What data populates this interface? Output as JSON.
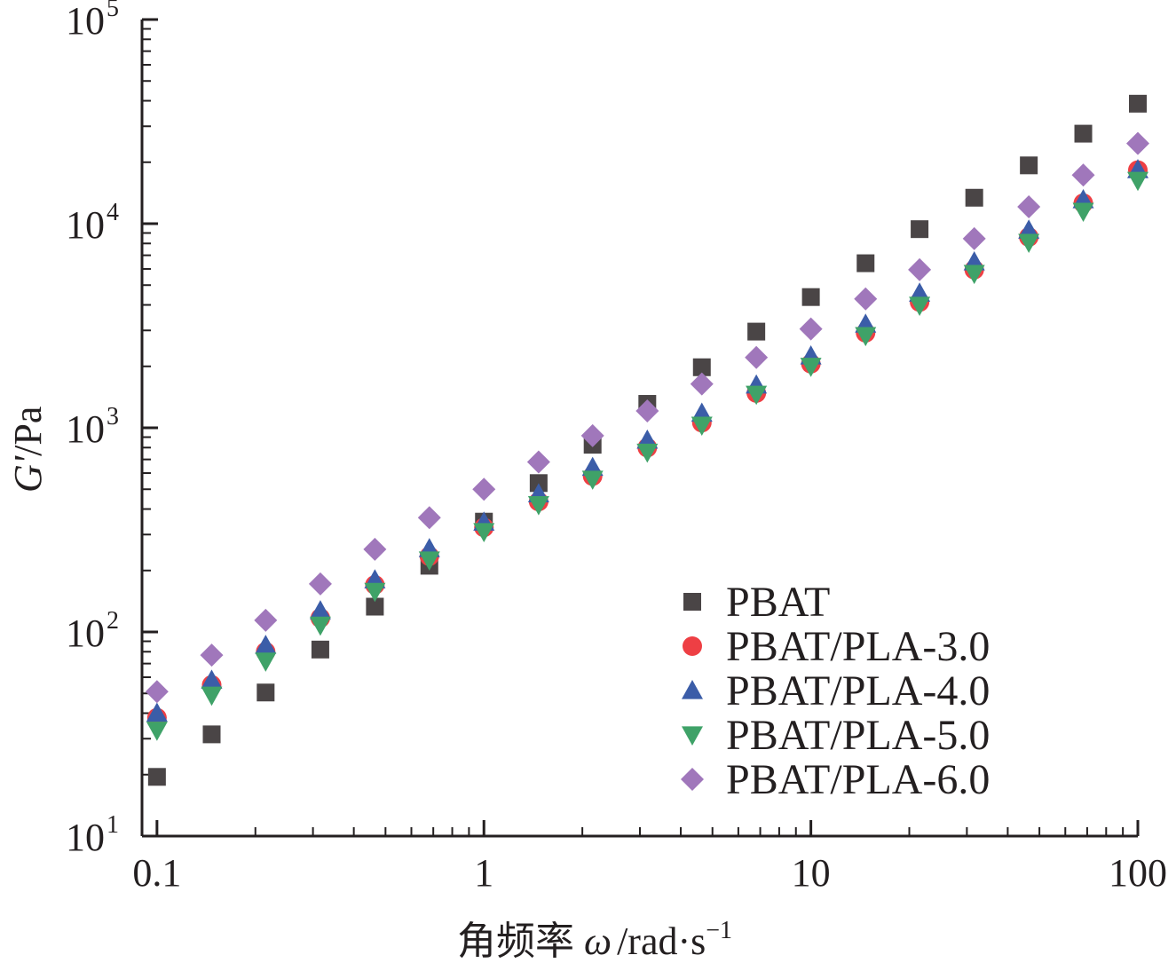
{
  "chart_data": {
    "type": "scatter",
    "x_scale": "log",
    "y_scale": "log",
    "xlim": [
      0.09,
      100
    ],
    "ylim": [
      10,
      100000
    ],
    "x_ticks": [
      {
        "value": 0.1,
        "label": "0.1"
      },
      {
        "value": 1,
        "label": "1"
      },
      {
        "value": 10,
        "label": "10"
      },
      {
        "value": 100,
        "label": "100"
      }
    ],
    "y_ticks": [
      {
        "value": 10,
        "base": "10",
        "exp": "1"
      },
      {
        "value": 100,
        "base": "10",
        "exp": "2"
      },
      {
        "value": 1000,
        "base": "10",
        "exp": "3"
      },
      {
        "value": 10000,
        "base": "10",
        "exp": "4"
      },
      {
        "value": 100000,
        "base": "10",
        "exp": "5"
      }
    ],
    "xlabel": {
      "prefix": "角频率 ",
      "symbol": "ω",
      "unit": "/rad·s",
      "exp": "−1"
    },
    "ylabel": {
      "symbol": "G'",
      "unit": "/Pa"
    },
    "legend_position": "bottom-right",
    "x": [
      0.1,
      0.147,
      0.215,
      0.316,
      0.464,
      0.681,
      1,
      1.47,
      2.15,
      3.16,
      4.64,
      6.81,
      10,
      14.7,
      21.5,
      31.6,
      46.4,
      68.1,
      100
    ],
    "series": [
      {
        "name": "PBAT",
        "marker": "square",
        "color": "#4a4546",
        "values": [
          19.5,
          31.5,
          50.5,
          82,
          133,
          211,
          347,
          536,
          826,
          1310,
          1980,
          2960,
          4370,
          6400,
          9400,
          13400,
          19300,
          27600,
          38700
        ]
      },
      {
        "name": "PBAT/PLA-3.0",
        "marker": "circle",
        "color": "#ee3f44",
        "values": [
          38,
          55,
          80,
          117,
          170,
          235,
          325,
          435,
          580,
          800,
          1060,
          1480,
          2060,
          2920,
          4130,
          5950,
          8600,
          12600,
          18300
        ]
      },
      {
        "name": "PBAT/PLA-4.0",
        "marker": "triangle-up",
        "color": "#3b5da8",
        "values": [
          40,
          58,
          86,
          127,
          180,
          256,
          345,
          475,
          640,
          870,
          1180,
          1620,
          2250,
          3220,
          4570,
          6500,
          9300,
          13100,
          18400
        ]
      },
      {
        "name": "PBAT/PLA-5.0",
        "marker": "triangle-down",
        "color": "#3fa268",
        "values": [
          33,
          49,
          72,
          108,
          158,
          225,
          310,
          420,
          560,
          760,
          1030,
          1460,
          2000,
          2830,
          3980,
          5700,
          8100,
          11500,
          16300
        ]
      },
      {
        "name": "PBAT/PLA-6.0",
        "marker": "diamond",
        "color": "#a077bb",
        "values": [
          51,
          77,
          114,
          172,
          254,
          363,
          500,
          680,
          915,
          1210,
          1640,
          2210,
          3050,
          4280,
          5950,
          8450,
          12100,
          17300,
          24700
        ]
      }
    ]
  }
}
